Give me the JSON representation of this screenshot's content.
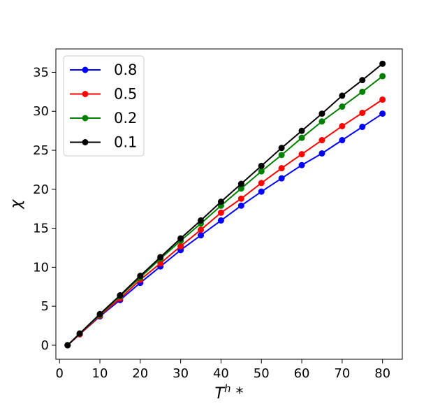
{
  "chart_data": {
    "type": "line",
    "xlabel": "T^h *",
    "ylabel": "χ",
    "xlim": [
      -0.9,
      84.9
    ],
    "ylim": [
      -1.8,
      38.0
    ],
    "xticks": [
      0,
      10,
      20,
      30,
      40,
      50,
      60,
      70,
      80
    ],
    "yticks": [
      0,
      5,
      10,
      15,
      20,
      25,
      30,
      35
    ],
    "grid": false,
    "legend_position": "upper-left",
    "x": [
      2,
      5,
      10,
      15,
      20,
      25,
      30,
      35,
      40,
      45,
      50,
      55,
      60,
      65,
      70,
      75,
      80
    ],
    "series": [
      {
        "name": "0.8",
        "color": "#0000ff",
        "values": [
          0,
          1.4,
          3.7,
          5.8,
          8.0,
          10.1,
          12.2,
          14.1,
          16.0,
          17.9,
          19.7,
          21.4,
          23.1,
          24.6,
          26.3,
          28.0,
          29.7
        ]
      },
      {
        "name": "0.5",
        "color": "#ff0000",
        "values": [
          0,
          1.4,
          3.8,
          6.0,
          8.4,
          10.5,
          12.7,
          14.8,
          17.0,
          18.8,
          20.8,
          22.7,
          24.5,
          26.3,
          28.1,
          29.8,
          31.5
        ]
      },
      {
        "name": "0.2",
        "color": "#008000",
        "values": [
          0,
          1.5,
          3.9,
          6.3,
          8.7,
          11.1,
          13.4,
          15.6,
          17.9,
          20.1,
          22.3,
          24.4,
          26.6,
          28.7,
          30.6,
          32.5,
          34.5
        ]
      },
      {
        "name": "0.1",
        "color": "#000000",
        "values": [
          0,
          1.5,
          4.0,
          6.4,
          8.9,
          11.3,
          13.7,
          16.0,
          18.4,
          20.7,
          23.0,
          25.3,
          27.5,
          29.7,
          32.0,
          34.0,
          36.1
        ]
      }
    ]
  }
}
